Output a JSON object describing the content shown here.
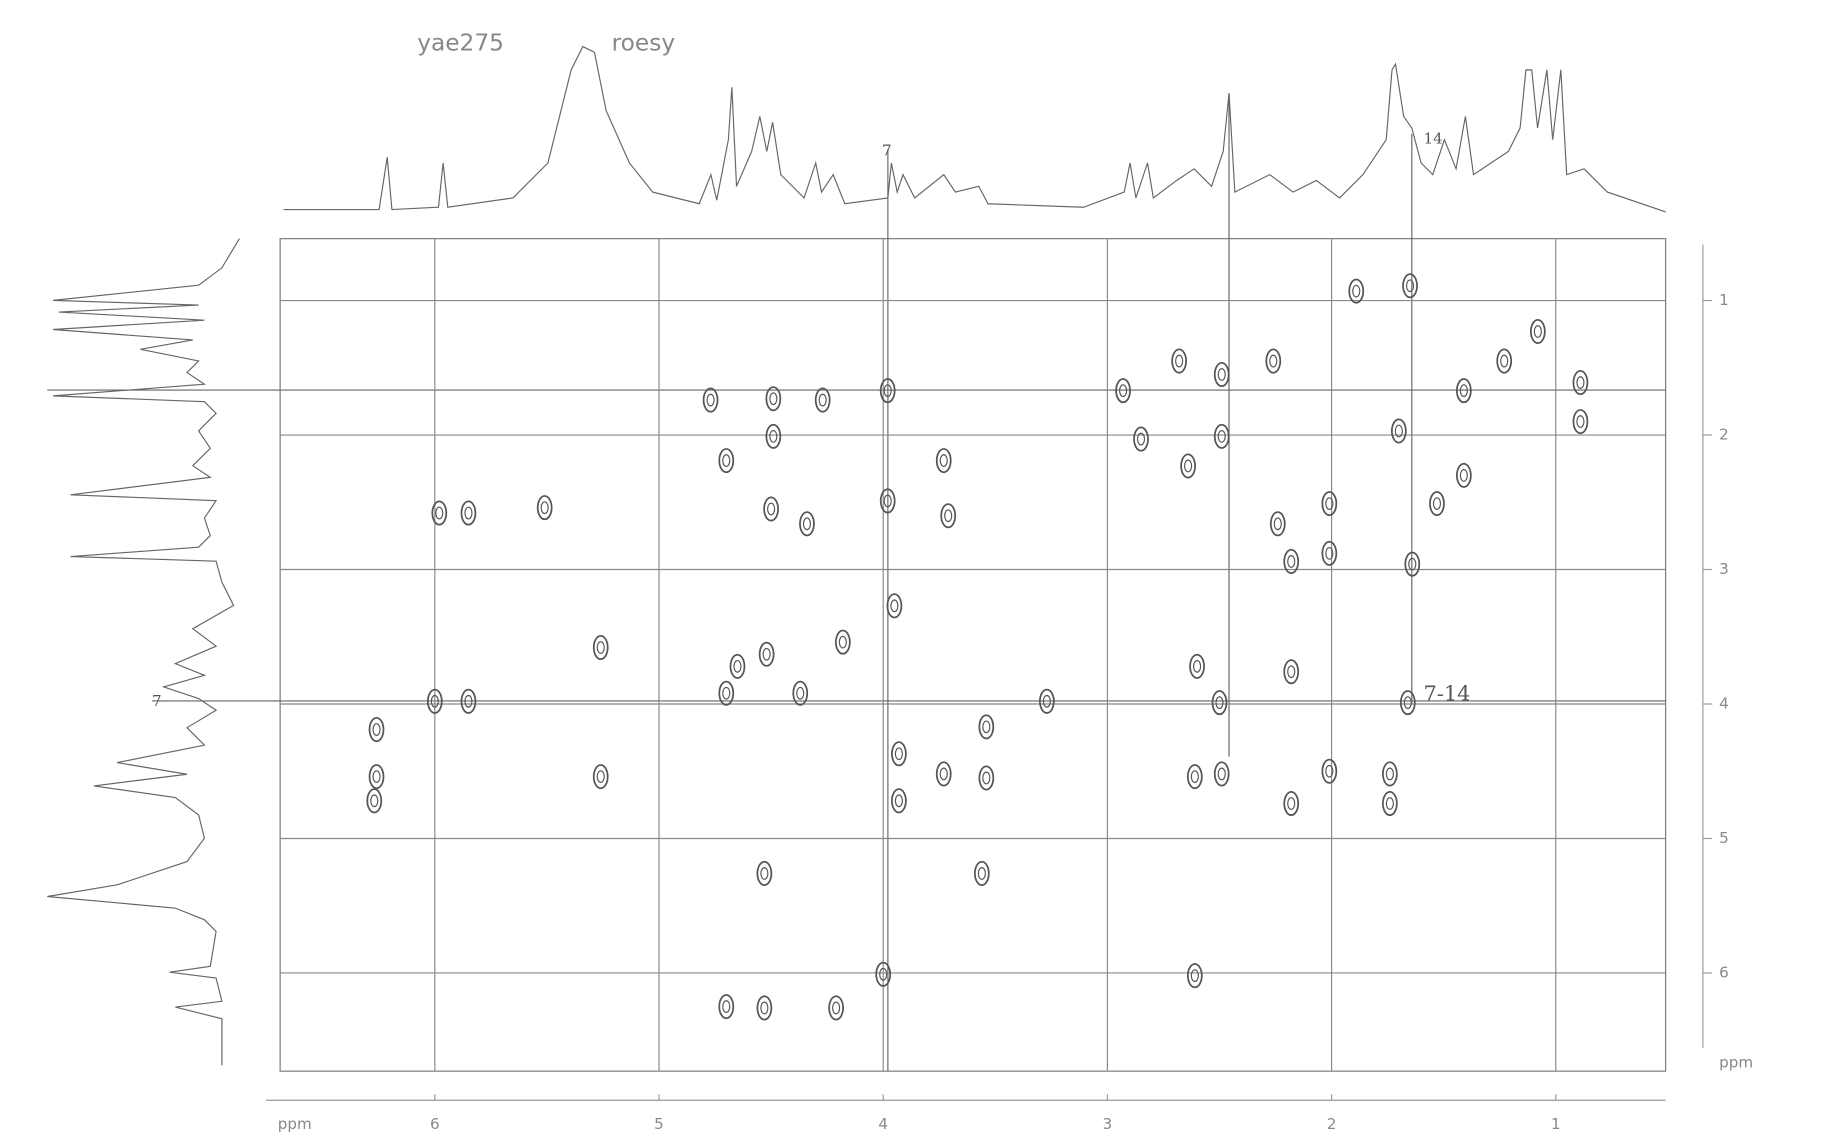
{
  "chart_data": {
    "type": "scatter",
    "spectrum": "yae275",
    "experiment": "roesy",
    "xlabel": "ppm",
    "ylabel": "ppm",
    "annotations": [
      "7-14",
      "14",
      "7",
      "7"
    ],
    "x": [
      1.89,
      1.65,
      2.68,
      2.49,
      2.26,
      2.93,
      1.41,
      0.89,
      0.89,
      4.77,
      4.49,
      4.27,
      3.98,
      4.49,
      2.49,
      2.85,
      2.64,
      4.7,
      3.73,
      2.01,
      2.24,
      1.53,
      1.41,
      5.98,
      5.85,
      5.51,
      4.5,
      4.34,
      3.71,
      3.98,
      2.18,
      2.01,
      1.64,
      3.95,
      5.26,
      4.18,
      4.52,
      4.65,
      2.6,
      2.18,
      4.7,
      4.37,
      6.0,
      5.85,
      3.27,
      2.5,
      1.66,
      3.54,
      6.26,
      3.93,
      6.26,
      6.27,
      5.26,
      3.54,
      3.73,
      2.61,
      2.49,
      2.01,
      1.74,
      1.74,
      3.93,
      2.18,
      4.53,
      3.56,
      4.0,
      2.61,
      4.7,
      4.53,
      4.21,
      1.23,
      1.08,
      1.7
    ],
    "values": [
      0.93,
      0.89,
      1.45,
      1.55,
      1.45,
      1.67,
      1.67,
      1.61,
      1.9,
      1.74,
      1.73,
      1.74,
      1.67,
      2.01,
      2.01,
      2.03,
      2.23,
      2.19,
      2.19,
      2.51,
      2.66,
      2.51,
      2.3,
      2.58,
      2.58,
      2.54,
      2.55,
      2.66,
      2.6,
      2.49,
      2.94,
      2.88,
      2.96,
      3.27,
      3.58,
      3.54,
      3.63,
      3.72,
      3.72,
      3.76,
      3.92,
      3.92,
      3.98,
      3.98,
      3.98,
      3.99,
      3.99,
      4.17,
      4.19,
      4.37,
      4.54,
      4.72,
      4.54,
      4.55,
      4.52,
      4.54,
      4.52,
      4.5,
      4.52,
      4.74,
      4.72,
      4.74,
      5.26,
      5.26,
      6.01,
      6.02,
      6.25,
      6.26,
      6.26,
      1.45,
      1.23,
      1.97
    ],
    "color": "#555555",
    "xlim": [
      6.69,
      0.51
    ],
    "ylim": [
      0.54,
      6.73
    ],
    "xticks": [
      6,
      5,
      4,
      3,
      2,
      1
    ],
    "yticks": [
      1,
      2,
      3,
      4,
      5,
      6
    ],
    "grid": true
  }
}
